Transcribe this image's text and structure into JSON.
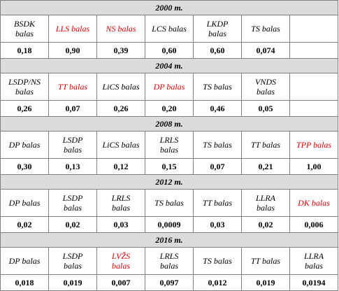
{
  "sections": [
    {
      "year": "2000 m.",
      "labels": [
        {
          "l1": "BSDK",
          "l2": "balas",
          "red": false
        },
        {
          "l1": "LLS balas",
          "l2": "",
          "red": true
        },
        {
          "l1": "NS balas",
          "l2": "",
          "red": true
        },
        {
          "l1": "LCS balas",
          "l2": "",
          "red": false
        },
        {
          "l1": "LKDP",
          "l2": "balas",
          "red": false
        },
        {
          "l1": "TS balas",
          "l2": "",
          "red": false
        },
        {
          "l1": "",
          "l2": "",
          "red": false
        }
      ],
      "values": [
        "0,18",
        "0,90",
        "0,39",
        "0,60",
        "0,60",
        "0,074",
        ""
      ]
    },
    {
      "year": "2004 m.",
      "labels": [
        {
          "l1": "LSDP/NS",
          "l2": "balas",
          "red": false
        },
        {
          "l1": "TT balas",
          "l2": "",
          "red": true
        },
        {
          "l1": "LiCS balas",
          "l2": "",
          "red": false
        },
        {
          "l1": "DP balas",
          "l2": "",
          "red": true
        },
        {
          "l1": "TS balas",
          "l2": "",
          "red": false
        },
        {
          "l1": "VNDS",
          "l2": "balas",
          "red": false
        },
        {
          "l1": "",
          "l2": "",
          "red": false
        }
      ],
      "values": [
        "0,26",
        "0,07",
        "0,26",
        "0,20",
        "0,46",
        "0,05",
        ""
      ]
    },
    {
      "year": "2008 m.",
      "labels": [
        {
          "l1": "DP balas",
          "l2": "",
          "red": false
        },
        {
          "l1": "LSDP",
          "l2": "balas",
          "red": false
        },
        {
          "l1": "LiCS balas",
          "l2": "",
          "red": false
        },
        {
          "l1": "LRLS",
          "l2": "balas",
          "red": false
        },
        {
          "l1": "TS balas",
          "l2": "",
          "red": false
        },
        {
          "l1": "TT balas",
          "l2": "",
          "red": false
        },
        {
          "l1": "TPP balas",
          "l2": "",
          "red": true
        }
      ],
      "values": [
        "0,30",
        "0,13",
        "0,12",
        "0,15",
        "0,07",
        "0,21",
        "1,00"
      ]
    },
    {
      "year": "2012 m.",
      "labels": [
        {
          "l1": "DP balas",
          "l2": "",
          "red": false
        },
        {
          "l1": "LSDP",
          "l2": "balas",
          "red": false
        },
        {
          "l1": "LRLS",
          "l2": "balas",
          "red": false
        },
        {
          "l1": "TS balas",
          "l2": "",
          "red": false
        },
        {
          "l1": "TT balas",
          "l2": "",
          "red": false
        },
        {
          "l1": "LLRA",
          "l2": "balas",
          "red": false
        },
        {
          "l1": "DK balas",
          "l2": "",
          "red": true
        }
      ],
      "values": [
        "0,02",
        "0,02",
        "0,03",
        "0,0009",
        "0,03",
        "0,02",
        "0,006"
      ]
    },
    {
      "year": "2016 m.",
      "labels": [
        {
          "l1": "DP balas",
          "l2": "",
          "red": false
        },
        {
          "l1": "LSDP",
          "l2": "balas",
          "red": false
        },
        {
          "l1": "LVŽS",
          "l2": "balas",
          "red": true
        },
        {
          "l1": "LRLS",
          "l2": "balas",
          "red": false
        },
        {
          "l1": "TS balas",
          "l2": "",
          "red": false
        },
        {
          "l1": "TT balas",
          "l2": "",
          "red": false
        },
        {
          "l1": "LLRA",
          "l2": "balas",
          "red": false
        }
      ],
      "values": [
        "0,018",
        "0,019",
        "0,007",
        "0,097",
        "0,012",
        "0,019",
        "0,0194"
      ]
    }
  ]
}
